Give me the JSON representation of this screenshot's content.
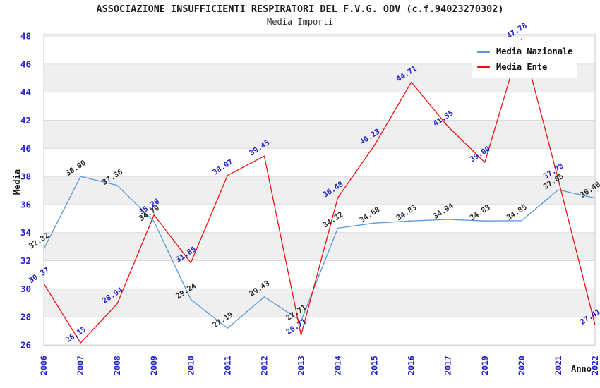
{
  "header": {
    "title": "ASSOCIAZIONE INSUFFICIENTI RESPIRATORI DEL F.V.G. ODV (c.f.94023270302)",
    "subtitle": "Media Importi"
  },
  "chart_data": {
    "type": "line",
    "title": "ASSOCIAZIONE INSUFFICIENTI RESPIRATORI DEL F.V.G. ODV (c.f.94023270302)",
    "subtitle": "Media Importi",
    "xlabel": "Anno",
    "ylabel": "Media",
    "categories": [
      "2006",
      "2007",
      "2008",
      "2009",
      "2010",
      "2011",
      "2012",
      "2013",
      "2014",
      "2015",
      "2016",
      "2017",
      "2019",
      "2020",
      "2021",
      "2022"
    ],
    "series": [
      {
        "name": "Media Nazionale",
        "color": "#5599DD",
        "label_color": "#2B2B2B",
        "values": [
          32.82,
          38.0,
          37.36,
          34.79,
          29.24,
          27.19,
          29.43,
          27.71,
          34.32,
          34.68,
          34.83,
          34.94,
          34.83,
          34.85,
          37.05,
          36.46
        ]
      },
      {
        "name": "Media Ente",
        "color": "#EE1111",
        "label_color": "#2222CC",
        "values": [
          30.37,
          26.15,
          28.94,
          35.26,
          31.85,
          38.07,
          39.45,
          26.71,
          36.48,
          40.23,
          44.71,
          41.55,
          39.0,
          47.78,
          37.78,
          27.41
        ]
      }
    ],
    "ylim": [
      26,
      48
    ],
    "y_ticks": [
      26,
      28,
      30,
      32,
      34,
      36,
      38,
      40,
      42,
      44,
      46,
      48
    ],
    "grid": "horizontal gridlines with alternating gray bands",
    "legend_position": "top-right",
    "axis_tick_color": "#2222CC",
    "band_color": "#EFEFEF",
    "grid_color": "#DCDCDC",
    "border_color": "#C8C8C8",
    "background_color": "#FFFFFF"
  }
}
